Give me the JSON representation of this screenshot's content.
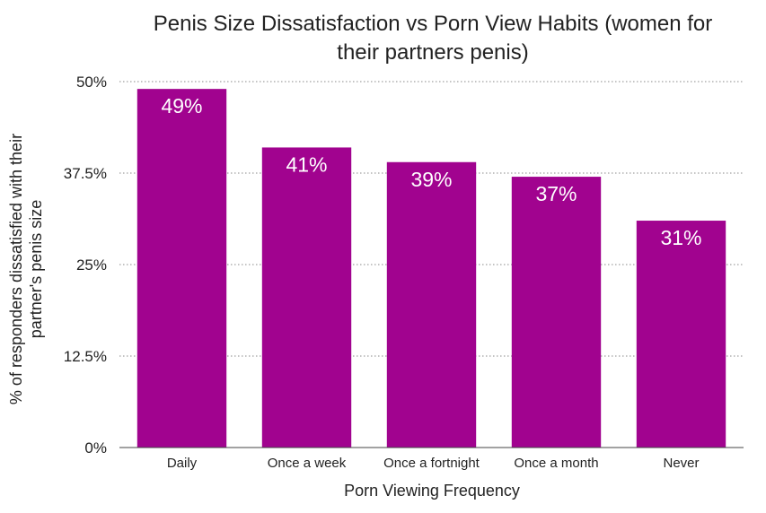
{
  "chart_data": {
    "type": "bar",
    "title_line1": "Penis Size Dissatisfaction vs Porn View Habits (women for",
    "title_line2": "their partners penis)",
    "xlabel": "Porn Viewing Frequency",
    "ylabel_line1": "% of responders dissatisfied with their",
    "ylabel_line2": "partner's penis size",
    "categories": [
      "Daily",
      "Once a week",
      "Once a fortnight",
      "Once a month",
      "Never"
    ],
    "values": [
      49,
      41,
      39,
      37,
      31
    ],
    "data_labels": [
      "49%",
      "41%",
      "39%",
      "37%",
      "31%"
    ],
    "ylim": [
      0,
      50
    ],
    "yticks": [
      0,
      12.5,
      25,
      37.5,
      50
    ],
    "ytick_labels": [
      "0%",
      "12.5%",
      "25%",
      "37.5%",
      "50%"
    ],
    "grid": "horizontal dotted",
    "bar_color": "#a1038f",
    "label_color": "#ffffff"
  }
}
